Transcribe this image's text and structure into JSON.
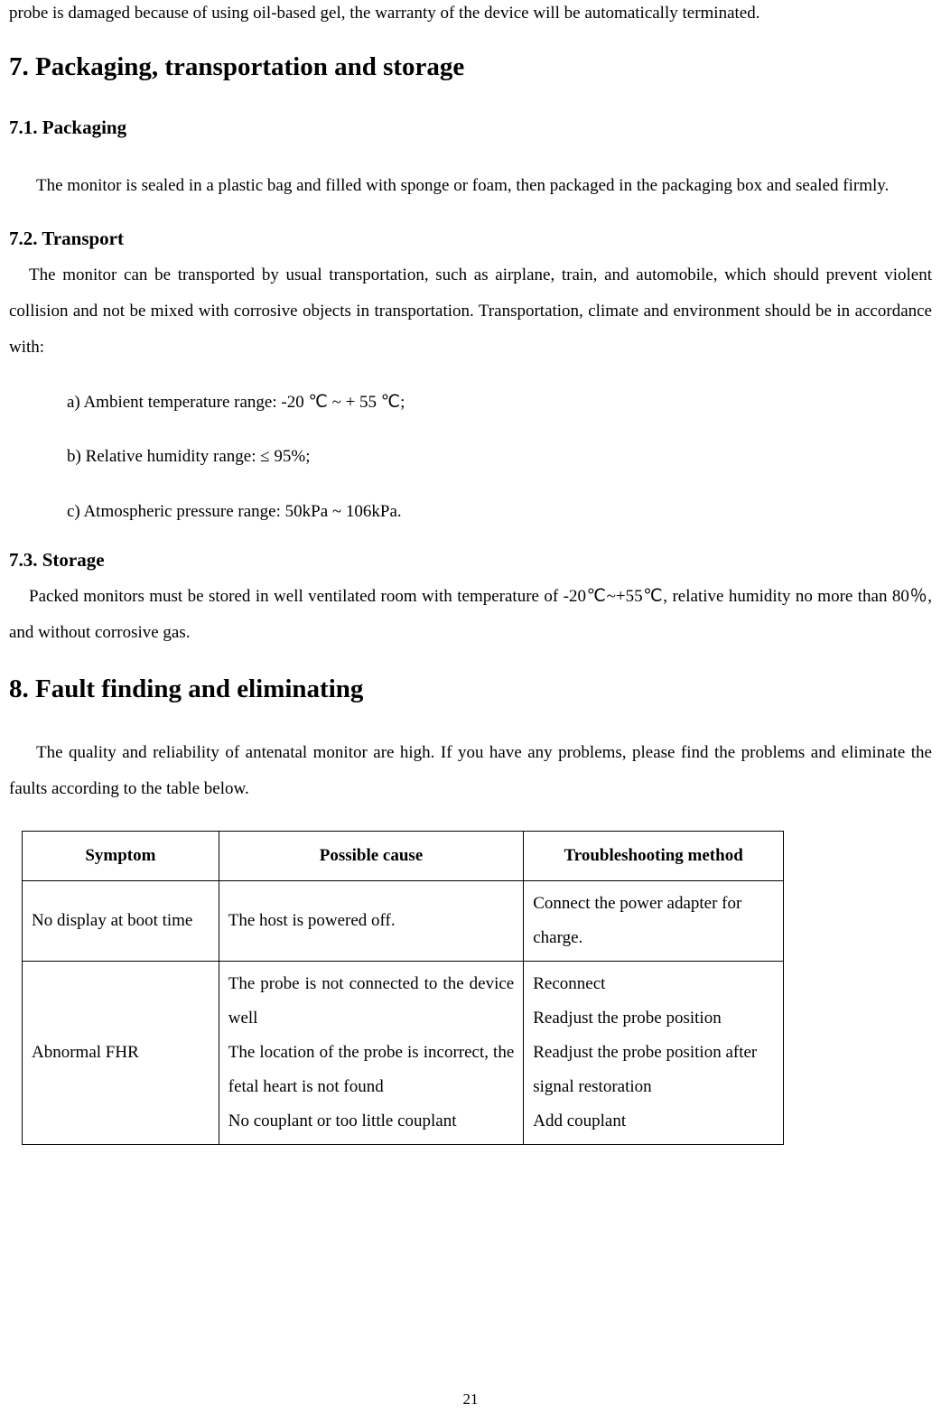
{
  "intro_fragment": "probe is damaged because of using oil-based gel, the warranty of the device will be automatically terminated.",
  "section7": {
    "title": "7. Packaging, transportation and storage",
    "s7_1": {
      "heading": "7.1. Packaging",
      "text": "The monitor is sealed in a plastic bag and filled with sponge or foam, then packaged in the packaging box and sealed firmly."
    },
    "s7_2": {
      "heading": "7.2. Transport",
      "text": "The monitor can be transported by usual transportation, such as airplane, train, and automobile, which should prevent violent collision and not be mixed with corrosive objects in transportation. Transportation, climate and environment should be in accordance with:",
      "items": [
        "a)  Ambient temperature range: -20  ℃  ~ + 55  ℃;",
        "b)  Relative humidity range:  ≤  95%;",
        "c)  Atmospheric pressure range: 50kPa ~ 106kPa."
      ]
    },
    "s7_3": {
      "heading": "7.3. Storage",
      "text": "Packed monitors must be stored in well ventilated room with temperature of -20℃~+55℃, relative humidity no more than 80％, and without corrosive gas."
    }
  },
  "section8": {
    "title": "8. Fault finding and eliminating",
    "text": "The quality and reliability of antenatal monitor are high. If you have any problems, please find the problems and eliminate the faults according to the table below.",
    "table": {
      "headers": [
        "Symptom",
        "Possible cause",
        "Troubleshooting method"
      ],
      "rows": [
        {
          "symptom": "No display at boot time",
          "cause": "The host is powered off.",
          "method": "Connect the power adapter for charge."
        },
        {
          "symptom": "Abnormal FHR",
          "cause": "The probe is not connected to the device well\nThe location of the probe is incorrect, the fetal heart is not found\nNo couplant or too little couplant",
          "method": "Reconnect\nReadjust the probe position\nReadjust the probe position after signal restoration\nAdd couplant"
        }
      ]
    }
  },
  "page_number": "21"
}
